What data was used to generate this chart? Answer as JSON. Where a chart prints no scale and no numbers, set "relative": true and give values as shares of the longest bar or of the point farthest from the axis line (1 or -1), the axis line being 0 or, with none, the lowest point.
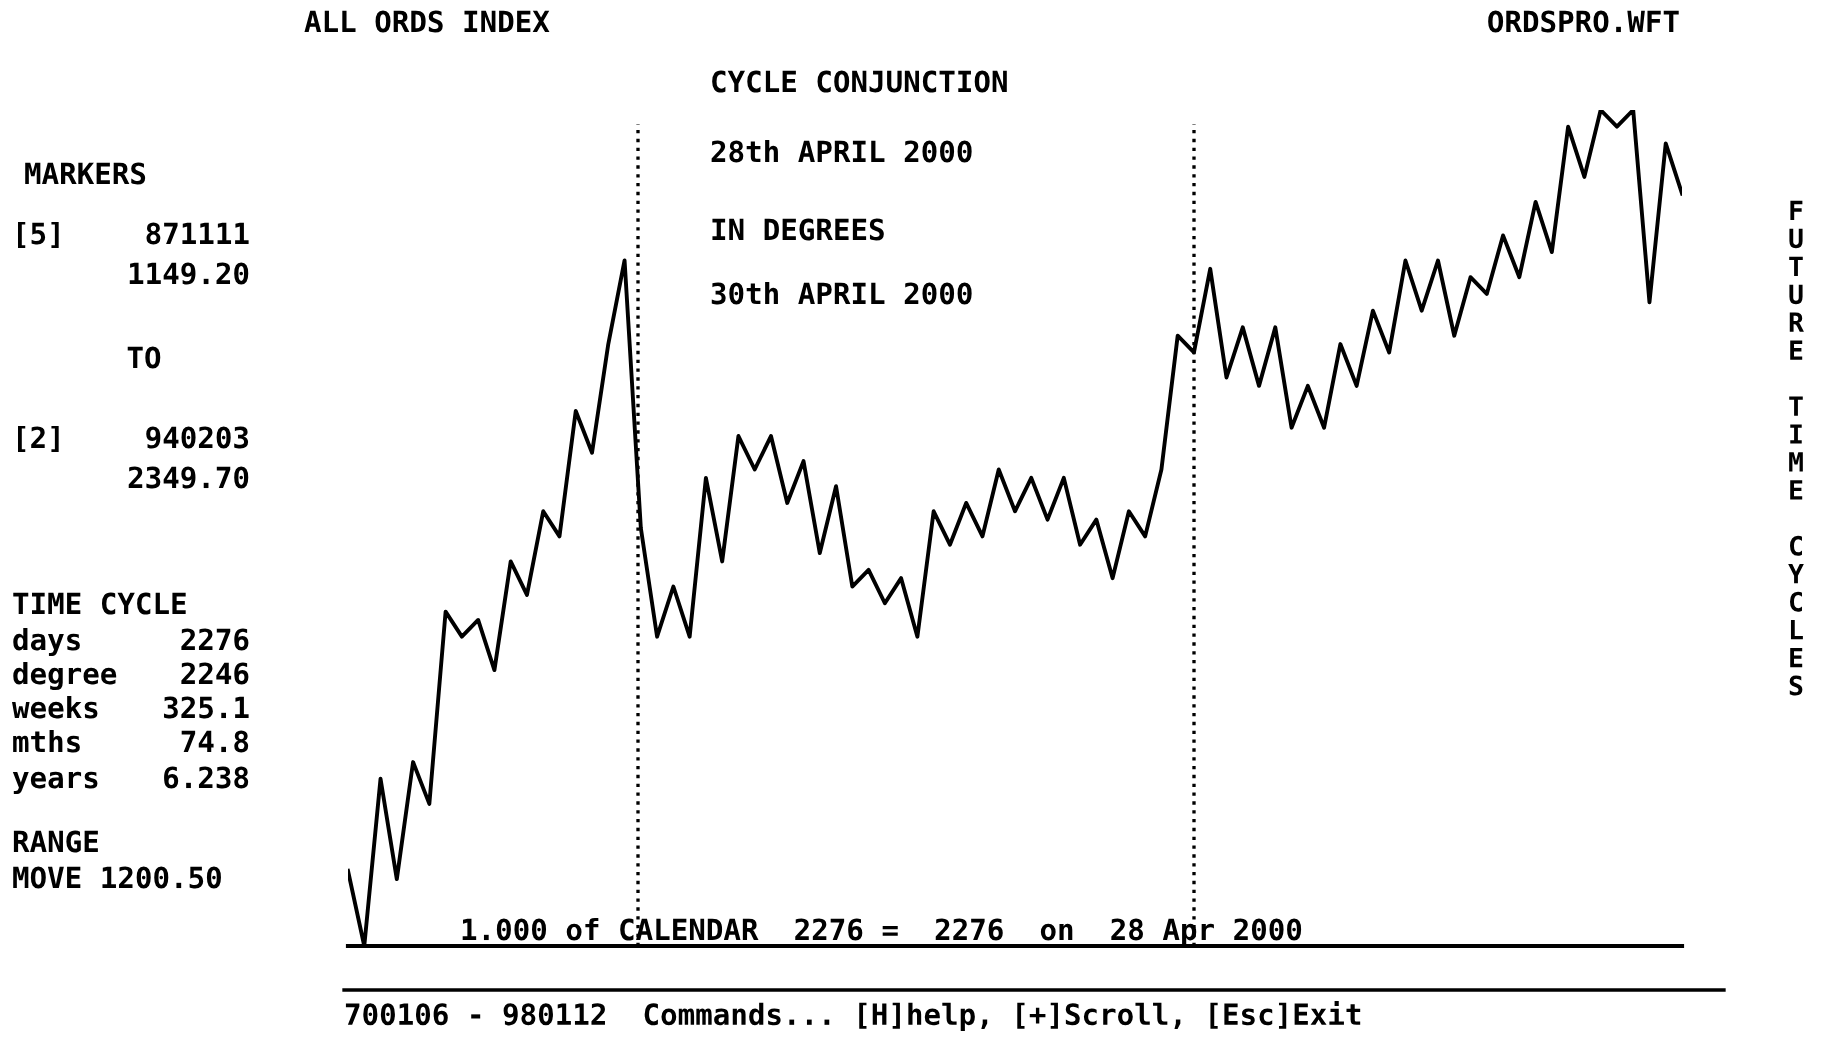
{
  "chart_data": {
    "type": "line",
    "relative": true,
    "title": "ALL ORDS INDEX",
    "subtitle": "ORDSPRO.WFT",
    "categories": [
      null,
      null,
      null,
      null,
      null,
      null,
      null,
      null,
      null,
      null,
      null,
      null,
      null,
      null,
      null,
      null,
      null,
      null,
      null,
      null,
      null,
      null,
      null,
      null,
      null,
      null,
      null,
      null,
      null,
      null,
      null,
      null,
      null,
      null,
      null,
      null,
      null,
      null,
      null,
      null,
      null,
      null,
      null,
      null,
      null,
      null,
      null,
      null,
      null,
      null,
      null,
      null,
      null,
      null,
      null,
      null,
      null,
      null,
      null,
      null,
      null,
      null,
      null,
      null,
      null,
      null,
      null,
      null,
      null,
      null,
      null,
      null,
      null,
      null,
      null,
      null,
      null,
      null,
      null,
      null,
      null,
      null,
      null
    ],
    "series": [
      {
        "color": "#000000",
        "values": [
          0.09,
          0.0,
          0.2,
          0.08,
          0.22,
          0.17,
          0.4,
          0.37,
          0.39,
          0.33,
          0.46,
          0.42,
          0.52,
          0.49,
          0.64,
          0.59,
          0.72,
          0.82,
          0.5,
          0.37,
          0.43,
          0.37,
          0.56,
          0.46,
          0.61,
          0.57,
          0.61,
          0.53,
          0.58,
          0.47,
          0.55,
          0.43,
          0.45,
          0.41,
          0.44,
          0.37,
          0.52,
          0.48,
          0.53,
          0.49,
          0.57,
          0.52,
          0.56,
          0.51,
          0.56,
          0.48,
          0.51,
          0.44,
          0.52,
          0.49,
          0.57,
          0.73,
          0.71,
          0.81,
          0.68,
          0.74,
          0.67,
          0.74,
          0.62,
          0.67,
          0.62,
          0.72,
          0.67,
          0.76,
          0.71,
          0.82,
          0.76,
          0.82,
          0.73,
          0.8,
          0.78,
          0.85,
          0.8,
          0.89,
          0.83,
          0.98,
          0.92,
          1.0,
          0.98,
          1.0,
          0.77,
          0.96,
          0.9
        ]
      }
    ],
    "legend": false,
    "annotations": [
      "CYCLE CONJUNCTION",
      "28th APRIL 2000",
      "IN DEGREES",
      "30th APRIL 2000",
      "MARKERS",
      "[5]",
      "871111",
      "1149.20",
      "TO",
      "[2]",
      "940203",
      "2349.70",
      "TIME CYCLE",
      "days",
      "2276",
      "degree",
      "2246",
      "weeks",
      "325.1",
      "mths",
      "74.8",
      "years",
      "6.238",
      "RANGE",
      "MOVE 1200.50",
      "1.000 of CALENDAR  2276 =  2276  on  28 Apr 2000",
      "700106 - 980112  Commands... [H]help, [+]Scroll, [Esc]Exit",
      "FUTURE TIME CYCLES"
    ]
  }
}
